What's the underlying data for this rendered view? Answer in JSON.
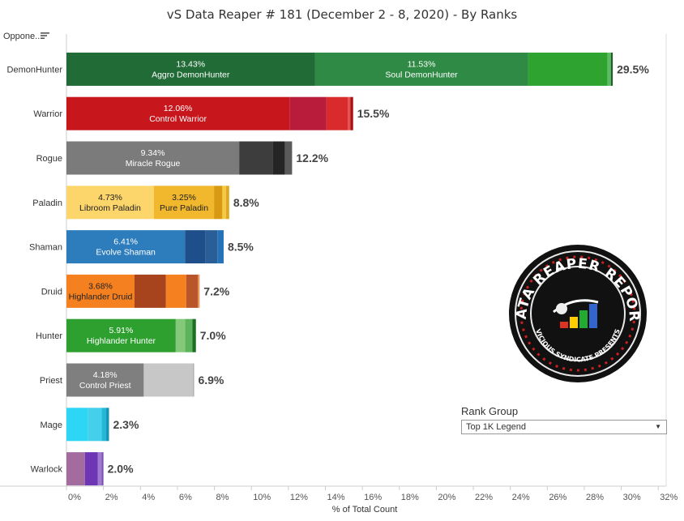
{
  "title": "vS Data Reaper #  181 (December 2 - 8, 2020) - By Ranks",
  "opponent_label": "Oppone..",
  "filter": {
    "label": "Rank Group",
    "selected": "Top 1K Legend",
    "icon": "dropdown-caret-icon"
  },
  "logo": {
    "name": "data-reaper-report-logo",
    "text_top": "DATA REAPER REPORT",
    "text_bottom": "VICIOUS SYNDICATE PRESENTS"
  },
  "chart_data": {
    "type": "bar",
    "orientation": "horizontal",
    "stacked": true,
    "xlabel": "% of Total Count",
    "xlim": [
      0,
      32
    ],
    "xticks": [
      "0%",
      "2%",
      "4%",
      "6%",
      "8%",
      "10%",
      "12%",
      "14%",
      "16%",
      "18%",
      "20%",
      "22%",
      "24%",
      "26%",
      "28%",
      "30%",
      "32%"
    ],
    "categories": [
      {
        "name": "DemonHunter",
        "total": "29.5%",
        "segments": [
          {
            "value": 13.43,
            "color": "#216b36",
            "label": "13.43%",
            "archetype": "Aggro DemonHunter"
          },
          {
            "value": 11.53,
            "color": "#2f8a45",
            "label": "11.53%",
            "archetype": "Soul DemonHunter"
          },
          {
            "value": 4.3,
            "color": "#2fa32f"
          },
          {
            "value": 0.18,
            "color": "#5dbb63"
          },
          {
            "value": 0.1,
            "color": "#1f5c2e"
          }
        ]
      },
      {
        "name": "Warrior",
        "total": "15.5%",
        "segments": [
          {
            "value": 12.06,
            "color": "#c8161d",
            "label": "12.06%",
            "archetype": "Control Warrior"
          },
          {
            "value": 2.0,
            "color": "#b81c3a"
          },
          {
            "value": 1.15,
            "color": "#d92b2b"
          },
          {
            "value": 0.14,
            "color": "#e55050"
          },
          {
            "value": 0.15,
            "color": "#a11"
          }
        ]
      },
      {
        "name": "Rogue",
        "total": "12.2%",
        "segments": [
          {
            "value": 9.34,
            "color": "#7b7b7b",
            "label": "9.34%",
            "archetype": "Miracle Rogue"
          },
          {
            "value": 1.8,
            "color": "#3d3d3d"
          },
          {
            "value": 0.68,
            "color": "#252525"
          },
          {
            "value": 0.38,
            "color": "#5a5a5a"
          }
        ]
      },
      {
        "name": "Paladin",
        "total": "8.8%",
        "segments": [
          {
            "value": 4.73,
            "color": "#fcd56b",
            "label": "4.73%",
            "archetype": "Libroom Paladin"
          },
          {
            "value": 3.25,
            "color": "#f1b72d",
            "label": "3.25%",
            "archetype": "Pure Paladin"
          },
          {
            "value": 0.45,
            "color": "#d89a13"
          },
          {
            "value": 0.2,
            "color": "#f6c945"
          },
          {
            "value": 0.17,
            "color": "#e0a820"
          }
        ]
      },
      {
        "name": "Shaman",
        "total": "8.5%",
        "segments": [
          {
            "value": 6.41,
            "color": "#2d7dbd",
            "label": "6.41%",
            "archetype": "Evolve Shaman"
          },
          {
            "value": 1.1,
            "color": "#1e4f8a"
          },
          {
            "value": 0.65,
            "color": "#2a5e96"
          },
          {
            "value": 0.34,
            "color": "#2672b8"
          }
        ]
      },
      {
        "name": "Druid",
        "total": "7.2%",
        "segments": [
          {
            "value": 3.68,
            "color": "#f48020",
            "label": "3.68%",
            "archetype": "Highlander Druid"
          },
          {
            "value": 1.7,
            "color": "#a7431d"
          },
          {
            "value": 1.1,
            "color": "#f48020"
          },
          {
            "value": 0.62,
            "color": "#b8552a"
          },
          {
            "value": 0.1,
            "color": "#e8915a"
          }
        ]
      },
      {
        "name": "Hunter",
        "total": "7.0%",
        "segments": [
          {
            "value": 5.91,
            "color": "#2ea02f",
            "label": "5.91%",
            "archetype": "Highlander Hunter"
          },
          {
            "value": 0.5,
            "color": "#84c87a"
          },
          {
            "value": 0.4,
            "color": "#5cb35a"
          },
          {
            "value": 0.19,
            "color": "#1e6e24"
          }
        ]
      },
      {
        "name": "Priest",
        "total": "6.9%",
        "segments": [
          {
            "value": 4.18,
            "color": "#7f7f7f",
            "label": "4.18%",
            "archetype": "Control Priest"
          },
          {
            "value": 2.67,
            "color": "#c7c7c7"
          },
          {
            "value": 0.05,
            "color": "#a0a0a0"
          }
        ]
      },
      {
        "name": "Mage",
        "total": "2.3%",
        "segments": [
          {
            "value": 1.15,
            "color": "#2ed6f5"
          },
          {
            "value": 0.75,
            "color": "#44cfea"
          },
          {
            "value": 0.25,
            "color": "#22b8d8"
          },
          {
            "value": 0.15,
            "color": "#1591b5"
          }
        ]
      },
      {
        "name": "Warlock",
        "total": "2.0%",
        "segments": [
          {
            "value": 1.0,
            "color": "#a36b9e"
          },
          {
            "value": 0.7,
            "color": "#6e35b5"
          },
          {
            "value": 0.2,
            "color": "#9f7ad0"
          },
          {
            "value": 0.1,
            "color": "#7d4fb0"
          }
        ]
      }
    ]
  }
}
